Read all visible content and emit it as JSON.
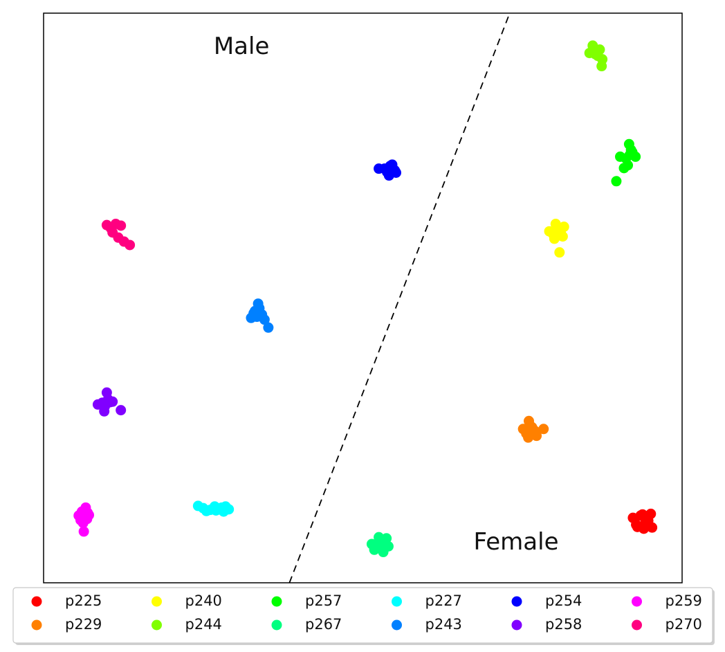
{
  "chart_data": {
    "type": "scatter",
    "axes_visible": false,
    "xlim": [
      0,
      100
    ],
    "ylim": [
      0,
      100
    ],
    "region_labels": [
      {
        "text": "Male",
        "x": 31,
        "y": 94
      },
      {
        "text": "Female",
        "x": 74,
        "y": 7
      }
    ],
    "divider": {
      "style": "dashed",
      "color": "#000000",
      "from": [
        38.5,
        0
      ],
      "to": [
        73,
        100
      ]
    },
    "legend": {
      "position": "bottom",
      "columns": 6
    },
    "series": [
      {
        "name": "p225",
        "color": "#ff0000",
        "points": [
          [
            92.3,
            11.4
          ],
          [
            93.5,
            11.8
          ],
          [
            94.7,
            10.9
          ],
          [
            95.1,
            12.1
          ],
          [
            94.0,
            9.5
          ],
          [
            93.0,
            9.8
          ],
          [
            95.3,
            9.7
          ],
          [
            94.5,
            11.0
          ],
          [
            92.8,
            10.2
          ],
          [
            93.8,
            12.0
          ],
          [
            94.2,
            10.4
          ]
        ]
      },
      {
        "name": "p229",
        "color": "#ff8000",
        "points": [
          [
            75.1,
            27.0
          ],
          [
            76.2,
            27.6
          ],
          [
            76.9,
            26.7
          ],
          [
            75.6,
            26.2
          ],
          [
            76.0,
            28.4
          ],
          [
            78.3,
            27.0
          ],
          [
            77.2,
            25.8
          ],
          [
            75.9,
            25.5
          ],
          [
            76.5,
            27.3
          ]
        ]
      },
      {
        "name": "p240",
        "color": "#ffff00",
        "points": [
          [
            79.2,
            61.7
          ],
          [
            80.5,
            62.1
          ],
          [
            81.5,
            62.5
          ],
          [
            80.0,
            60.4
          ],
          [
            81.3,
            60.8
          ],
          [
            80.8,
            58.0
          ],
          [
            79.8,
            61.2
          ],
          [
            80.2,
            63.0
          ],
          [
            81.0,
            61.4
          ]
        ]
      },
      {
        "name": "p244",
        "color": "#80ff00",
        "points": [
          [
            85.5,
            93.0
          ],
          [
            86.3,
            93.4
          ],
          [
            87.1,
            93.6
          ],
          [
            86.8,
            92.5
          ],
          [
            86.0,
            94.3
          ],
          [
            87.5,
            91.9
          ],
          [
            87.4,
            90.7
          ],
          [
            86.4,
            92.8
          ]
        ]
      },
      {
        "name": "p257",
        "color": "#00ff00",
        "points": [
          [
            90.3,
            74.8
          ],
          [
            91.2,
            74.5
          ],
          [
            91.8,
            75.1
          ],
          [
            92.7,
            74.8
          ],
          [
            92.0,
            76.0
          ],
          [
            91.5,
            73.3
          ],
          [
            90.9,
            72.8
          ],
          [
            89.7,
            70.5
          ],
          [
            91.7,
            77.0
          ],
          [
            92.2,
            75.6
          ]
        ]
      },
      {
        "name": "p267",
        "color": "#00ff80",
        "points": [
          [
            51.4,
            6.8
          ],
          [
            52.3,
            6.1
          ],
          [
            53.0,
            6.6
          ],
          [
            53.7,
            7.8
          ],
          [
            52.8,
            7.2
          ],
          [
            51.8,
            5.8
          ],
          [
            53.2,
            5.4
          ],
          [
            54.0,
            6.4
          ],
          [
            52.5,
            8.0
          ]
        ]
      },
      {
        "name": "p227",
        "color": "#00ffff",
        "points": [
          [
            24.2,
            13.5
          ],
          [
            25.0,
            13.1
          ],
          [
            26.1,
            12.8
          ],
          [
            27.0,
            12.7
          ],
          [
            27.9,
            13.2
          ],
          [
            28.5,
            13.4
          ],
          [
            29.0,
            12.9
          ],
          [
            28.2,
            12.5
          ],
          [
            26.8,
            13.4
          ],
          [
            25.5,
            12.6
          ]
        ]
      },
      {
        "name": "p243",
        "color": "#0080ff",
        "points": [
          [
            32.5,
            46.5
          ],
          [
            32.9,
            47.3
          ],
          [
            33.4,
            46.7
          ],
          [
            34.2,
            47.1
          ],
          [
            33.8,
            48.2
          ],
          [
            33.1,
            47.7
          ],
          [
            34.6,
            46.2
          ],
          [
            35.2,
            44.8
          ],
          [
            33.6,
            49.0
          ]
        ]
      },
      {
        "name": "p254",
        "color": "#0000ff",
        "points": [
          [
            52.5,
            72.7
          ],
          [
            53.4,
            72.7
          ],
          [
            54.1,
            71.5
          ],
          [
            55.0,
            72.4
          ],
          [
            54.3,
            73.2
          ],
          [
            53.8,
            72.1
          ],
          [
            55.2,
            72.0
          ],
          [
            54.6,
            73.4
          ]
        ]
      },
      {
        "name": "p258",
        "color": "#8000ff",
        "points": [
          [
            8.5,
            31.3
          ],
          [
            9.2,
            31.6
          ],
          [
            10.1,
            32.2
          ],
          [
            9.6,
            31.0
          ],
          [
            10.8,
            31.8
          ],
          [
            9.9,
            33.4
          ],
          [
            9.5,
            30.1
          ],
          [
            12.1,
            30.3
          ],
          [
            10.4,
            31.7
          ]
        ]
      },
      {
        "name": "p259",
        "color": "#ff00ff",
        "points": [
          [
            5.5,
            11.8
          ],
          [
            6.0,
            12.5
          ],
          [
            6.4,
            11.5
          ],
          [
            6.9,
            12.3
          ],
          [
            7.1,
            11.9
          ],
          [
            5.8,
            11.0
          ],
          [
            6.6,
            13.2
          ],
          [
            6.2,
            10.5
          ],
          [
            6.3,
            9.0
          ],
          [
            6.8,
            11.2
          ]
        ]
      },
      {
        "name": "p270",
        "color": "#ff0080",
        "points": [
          [
            9.9,
            62.8
          ],
          [
            10.5,
            62.3
          ],
          [
            11.3,
            63.0
          ],
          [
            12.1,
            62.7
          ],
          [
            10.8,
            61.5
          ],
          [
            11.7,
            60.6
          ],
          [
            12.6,
            59.9
          ],
          [
            13.5,
            59.3
          ]
        ]
      }
    ]
  }
}
